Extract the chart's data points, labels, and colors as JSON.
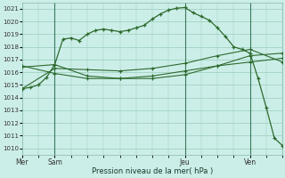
{
  "background_color": "#cceee8",
  "grid_color": "#99ccbb",
  "line_color": "#2d6a2d",
  "xlabel": "Pression niveau de la mer( hPa )",
  "ylim": [
    1009.5,
    1021.5
  ],
  "yticks": [
    1010,
    1011,
    1012,
    1013,
    1014,
    1015,
    1016,
    1017,
    1018,
    1019,
    1020,
    1021
  ],
  "vlines_x": [
    12,
    60,
    84
  ],
  "xtick_positions": [
    0,
    12,
    60,
    84
  ],
  "xtick_labels": [
    "Mer",
    "Sam",
    "Jeu",
    "Ven"
  ],
  "series1_x": [
    0,
    3,
    6,
    9,
    12,
    15,
    18,
    21,
    24,
    27,
    30,
    33,
    36,
    39,
    42,
    45,
    48,
    51,
    54,
    57,
    60,
    63,
    66,
    69,
    72,
    75,
    78,
    81,
    84,
    87,
    90,
    93,
    96
  ],
  "series1_y": [
    1014.7,
    1014.8,
    1015.0,
    1015.6,
    1016.6,
    1018.6,
    1018.7,
    1018.5,
    1019.0,
    1019.3,
    1019.4,
    1019.3,
    1019.2,
    1019.3,
    1019.5,
    1019.7,
    1020.2,
    1020.6,
    1020.9,
    1021.05,
    1021.1,
    1020.7,
    1020.4,
    1020.1,
    1019.5,
    1018.8,
    1018.0,
    1017.8,
    1017.5,
    1015.5,
    1013.2,
    1010.8,
    1010.2
  ],
  "series2_x": [
    0,
    12,
    24,
    36,
    48,
    60,
    72,
    84,
    96
  ],
  "series2_y": [
    1016.4,
    1016.6,
    1015.7,
    1015.5,
    1015.5,
    1015.8,
    1016.5,
    1017.3,
    1017.5
  ],
  "series3_x": [
    0,
    12,
    24,
    36,
    48,
    60,
    72,
    84,
    96
  ],
  "series3_y": [
    1016.5,
    1015.9,
    1015.5,
    1015.5,
    1015.7,
    1016.1,
    1016.5,
    1016.8,
    1017.1
  ],
  "series4_x": [
    0,
    12,
    24,
    36,
    48,
    60,
    72,
    84,
    96
  ],
  "series4_y": [
    1014.7,
    1016.3,
    1016.2,
    1016.1,
    1016.3,
    1016.7,
    1017.3,
    1017.8,
    1016.8
  ]
}
